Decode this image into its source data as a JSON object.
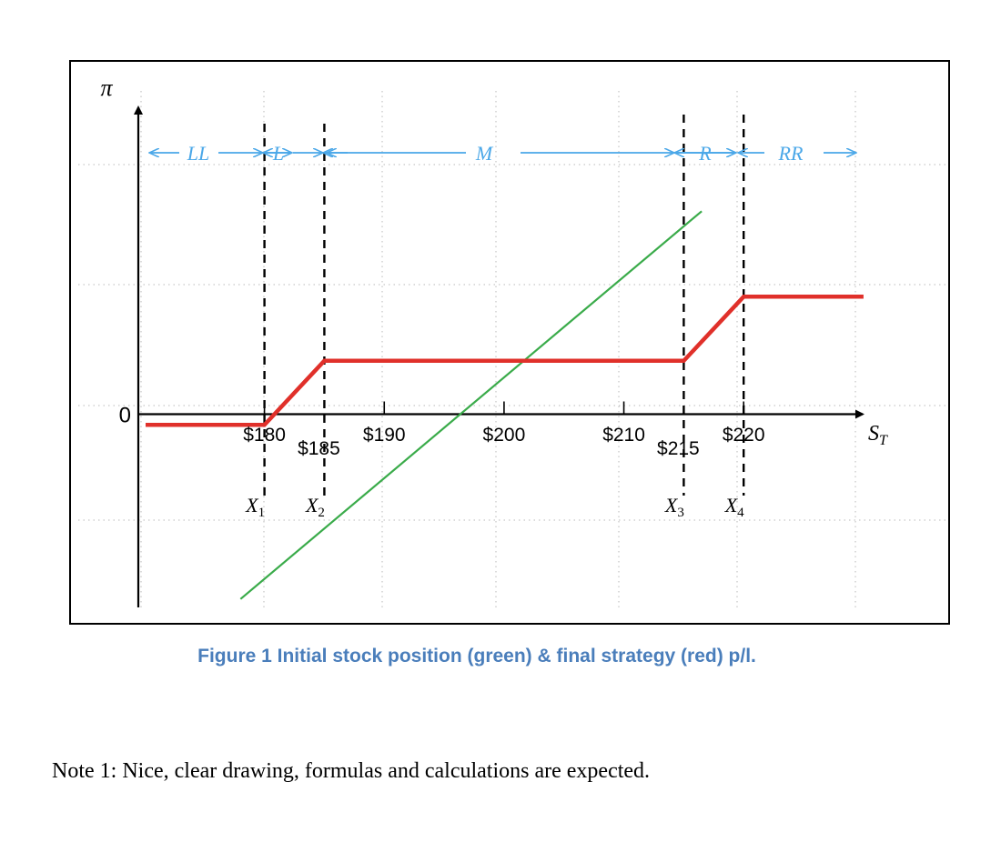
{
  "chart_data": {
    "type": "line",
    "x_axis": {
      "label": "S_T",
      "ticks": [
        180,
        190,
        200,
        210,
        220
      ],
      "tick_labels": [
        "$180",
        "$190",
        "$200",
        "$210",
        "$220"
      ]
    },
    "y_axis": {
      "label": "π",
      "zero_label": "0"
    },
    "strikes": [
      {
        "name": "X1",
        "value": 180,
        "label": "$180"
      },
      {
        "name": "X2",
        "value": 185,
        "label": "$185"
      },
      {
        "name": "X3",
        "value": 215,
        "label": "$215"
      },
      {
        "name": "X4",
        "value": 220,
        "label": "$220"
      }
    ],
    "regions": [
      "LL",
      "L",
      "M",
      "R",
      "RR"
    ],
    "series": [
      {
        "color": "#3aab4a",
        "x": [
          178,
          216.5
        ],
        "y": [
          -17.3,
          19
        ]
      },
      {
        "color": "#e0302a",
        "x": [
          171,
          180,
          185,
          215,
          220,
          230
        ],
        "y": [
          -1,
          -1,
          5,
          5,
          11,
          11
        ]
      }
    ],
    "grid": true
  },
  "caption": "Figure 1 Initial stock position (green) & final strategy (red) p/l.",
  "note": "Note 1: Nice, clear drawing, formulas and calculations are expected."
}
